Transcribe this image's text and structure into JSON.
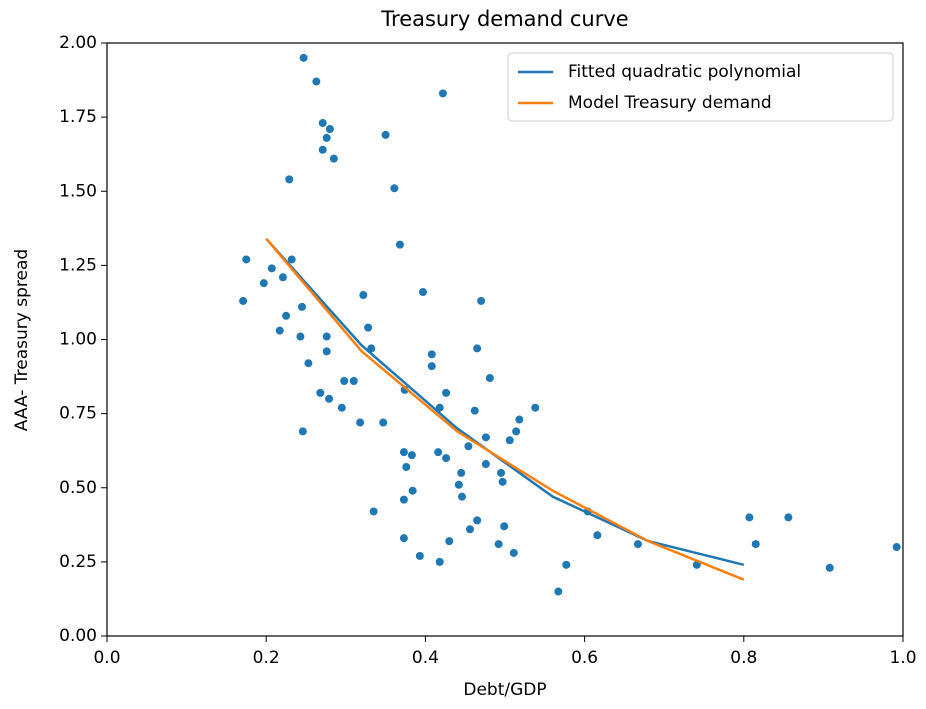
{
  "chart_data": {
    "type": "scatter",
    "title": "Treasury demand curve",
    "x_label": "Debt/GDP",
    "y_label": "AAA- Treasury spread",
    "xlim": [
      0.0,
      1.0
    ],
    "ylim": [
      0.0,
      2.0
    ],
    "xticks": [
      {
        "value": 0,
        "label": "0.0"
      },
      0.2,
      0.4,
      0.6,
      0.8,
      {
        "value": 1,
        "label": "1.0"
      }
    ],
    "yticks": [
      {
        "value": 0,
        "label": "0.00"
      },
      {
        "value": 0.25,
        "label": "0.25"
      },
      {
        "value": 0.5,
        "label": "0.50"
      },
      {
        "value": 0.75,
        "label": "0.75"
      },
      {
        "value": 1,
        "label": "1.00"
      },
      {
        "value": 1.25,
        "label": "1.25"
      },
      {
        "value": 1.5,
        "label": "1.50"
      },
      {
        "value": 1.75,
        "label": "1.75"
      },
      {
        "value": 2,
        "label": "2.00"
      }
    ],
    "legend": "upper right",
    "points": {
      "color": "#1f77b4",
      "x": [
        0.171,
        0.175,
        0.197,
        0.207,
        0.221,
        0.217,
        0.225,
        0.232,
        0.229,
        0.247,
        0.263,
        0.271,
        0.276,
        0.28,
        0.271,
        0.285,
        0.245,
        0.243,
        0.253,
        0.246,
        0.268,
        0.276,
        0.276,
        0.279,
        0.295,
        0.298,
        0.31,
        0.318,
        0.322,
        0.328,
        0.332,
        0.335,
        0.347,
        0.35,
        0.361,
        0.368,
        0.374,
        0.373,
        0.376,
        0.383,
        0.373,
        0.384,
        0.373,
        0.393,
        0.397,
        0.408,
        0.408,
        0.418,
        0.426,
        0.416,
        0.426,
        0.418,
        0.43,
        0.422,
        0.445,
        0.442,
        0.446,
        0.454,
        0.456,
        0.465,
        0.462,
        0.465,
        0.47,
        0.481,
        0.476,
        0.476,
        0.492,
        0.495,
        0.497,
        0.499,
        0.506,
        0.511,
        0.514,
        0.518,
        0.538,
        0.567,
        0.577,
        0.604,
        0.616,
        0.667,
        0.741,
        0.807,
        0.815,
        0.856,
        0.908,
        0.992
      ],
      "values": [
        1.13,
        1.27,
        1.19,
        1.24,
        1.21,
        1.03,
        1.08,
        1.27,
        1.54,
        1.95,
        1.87,
        1.73,
        1.68,
        1.71,
        1.64,
        1.61,
        1.11,
        1.01,
        0.92,
        0.69,
        0.82,
        1.01,
        0.96,
        0.8,
        0.77,
        0.86,
        0.86,
        0.72,
        1.15,
        1.04,
        0.97,
        0.42,
        0.72,
        1.69,
        1.51,
        1.32,
        0.83,
        0.62,
        0.57,
        0.61,
        0.46,
        0.49,
        0.33,
        0.27,
        1.16,
        0.95,
        0.91,
        0.77,
        0.82,
        0.62,
        0.6,
        0.25,
        0.32,
        1.83,
        0.55,
        0.51,
        0.47,
        0.64,
        0.36,
        0.39,
        0.76,
        0.97,
        1.13,
        0.87,
        0.67,
        0.58,
        0.31,
        0.55,
        0.52,
        0.37,
        0.66,
        0.28,
        0.69,
        0.73,
        0.77,
        0.15,
        0.24,
        0.42,
        0.34,
        0.31,
        0.24,
        0.4,
        0.31,
        0.4,
        0.23,
        0.3
      ]
    },
    "series": [
      {
        "name": "Fitted quadratic polynomial",
        "color": "#1f77b4",
        "x": [
          0.2,
          0.32,
          0.44,
          0.56,
          0.68,
          0.8
        ],
        "values": [
          1.34,
          0.98,
          0.7,
          0.47,
          0.32,
          0.24
        ]
      },
      {
        "name": "Model Treasury demand",
        "color": "#ff7f0e",
        "x": [
          0.2,
          0.32,
          0.44,
          0.56,
          0.68,
          0.8
        ],
        "values": [
          1.34,
          0.96,
          0.69,
          0.49,
          0.32,
          0.19
        ]
      }
    ]
  }
}
